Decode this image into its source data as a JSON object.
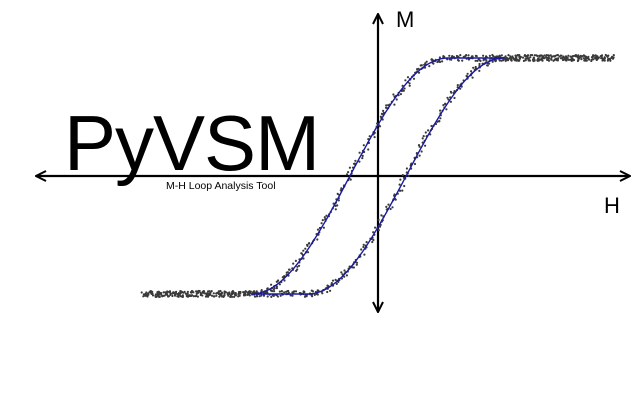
{
  "app": {
    "title": "PyVSM",
    "subtitle": "M-H Loop Analysis Tool"
  },
  "chart_data": {
    "type": "scatter",
    "title": "",
    "xlabel": "H",
    "ylabel": "M",
    "xlim": [
      -1.0,
      1.0
    ],
    "ylim": [
      -1.2,
      1.2
    ],
    "grid": false,
    "legend": "none",
    "series": [
      {
        "marker_color": "#3a3a3a",
        "fit_color": "#1a1aa0",
        "coercivity": 0.12,
        "saturation": 1.0,
        "width": 0.19,
        "saturation_field": 0.42
      }
    ]
  }
}
